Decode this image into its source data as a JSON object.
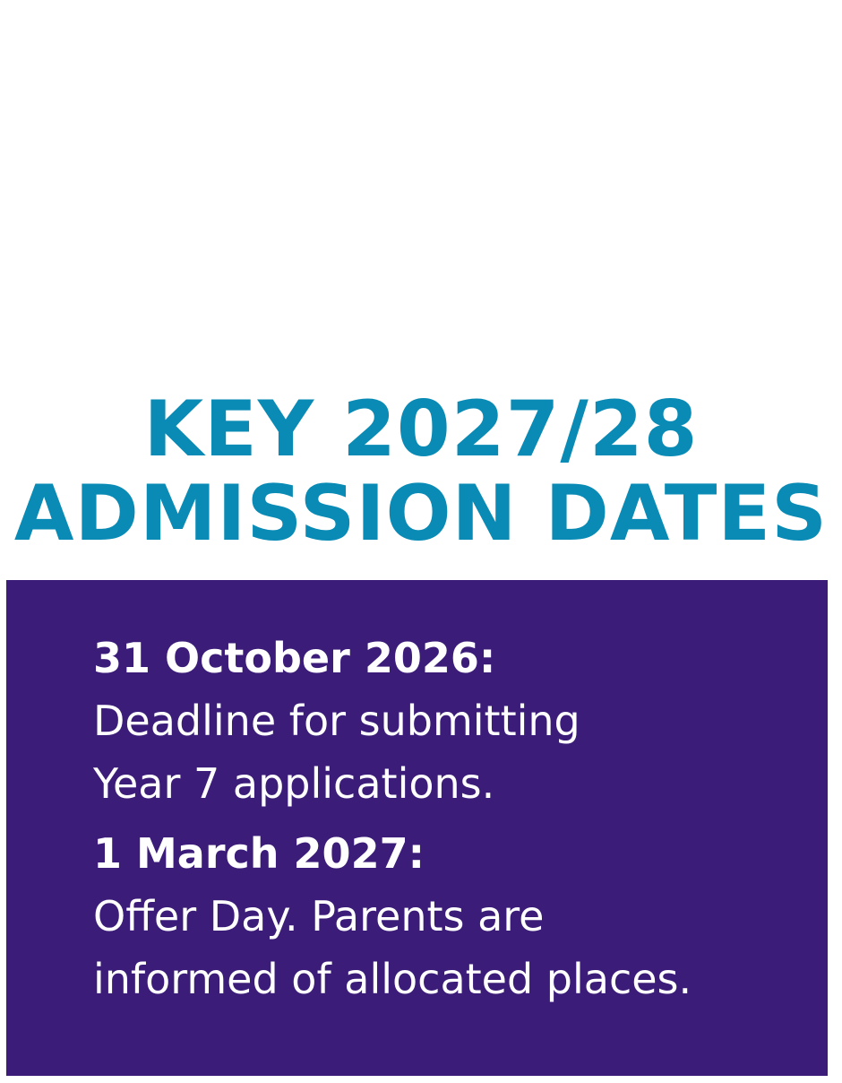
{
  "title": {
    "line1": "KEY 2027/28",
    "line2": "ADMISSION DATES"
  },
  "entries": [
    {
      "date": "31 October 2026:",
      "lines": [
        "Deadline for submitting",
        "Year 7 applications."
      ]
    },
    {
      "date": "1 March 2027:",
      "lines": [
        "Offer Day. Parents are",
        "informed of allocated places."
      ]
    }
  ],
  "colors": {
    "title": "#0a8bb5",
    "panel": "#3b1c78",
    "panel_text": "#ffffff"
  }
}
